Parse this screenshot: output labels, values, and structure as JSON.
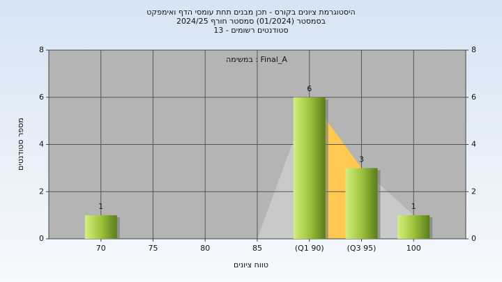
{
  "chart_data": {
    "type": "bar",
    "title": "היסטוגרמת ציונים בקורס - תכן מבנים תחת עומסי הדף ואימפקט",
    "subtitle": "בסמסטר  (01/2024)  סמסטר חורף 2024/25",
    "subtitle2": "סטודנטים רשומים - 13",
    "annotation": "במשימה : Final_A",
    "x_label": "טווח ציונים",
    "y_label": "מספר סטודנטים",
    "categories": [
      "70",
      "75",
      "80",
      "85",
      "(Q1 90)",
      "(Q3 95)",
      "100"
    ],
    "values": [
      1,
      0,
      0,
      0,
      6,
      3,
      1
    ],
    "color": "#9cc43c",
    "quartile_color": "#ffc850",
    "ylim": [
      0,
      8
    ],
    "yticks": [
      0,
      2,
      4,
      6,
      8
    ],
    "y2lim": [
      0,
      8
    ],
    "y2ticks": [
      0,
      2,
      4,
      6,
      8
    ],
    "grid": true
  }
}
